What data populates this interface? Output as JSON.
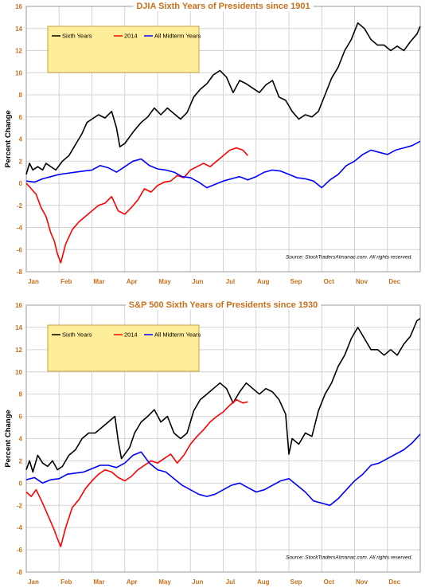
{
  "colors": {
    "sixth_years": "#000000",
    "y2014": "#ff0000",
    "midterm": "#0000ff",
    "axis_text": "#c8701c",
    "legend_bg": "#ffee99",
    "legend_border": "#c8a040"
  },
  "chart_data": [
    {
      "type": "line",
      "title": "DJIA Sixth Years of Presidents since 1901",
      "ylabel": "Percent Change",
      "xlabel": "",
      "ylim": [
        -8,
        16
      ],
      "yticks": [
        -8,
        -6,
        -4,
        -2,
        0,
        2,
        4,
        6,
        8,
        10,
        12,
        14,
        16
      ],
      "xlim": [
        0,
        12
      ],
      "xticks": [
        {
          "x": 0,
          "label": "Jan"
        },
        {
          "x": 1,
          "label": "Feb"
        },
        {
          "x": 2,
          "label": "Mar"
        },
        {
          "x": 3,
          "label": "Apr"
        },
        {
          "x": 4,
          "label": "May"
        },
        {
          "x": 5,
          "label": "Jun"
        },
        {
          "x": 6,
          "label": "Jul"
        },
        {
          "x": 7,
          "label": "Aug"
        },
        {
          "x": 8,
          "label": "Sep"
        },
        {
          "x": 9,
          "label": "Oct"
        },
        {
          "x": 10,
          "label": "Nov"
        },
        {
          "x": 11,
          "label": "Dec"
        }
      ],
      "grid": true,
      "legend": "top-left",
      "source": "Source: StockTradersAlmanac.com. All rights reserved.",
      "series": [
        {
          "name": "Sixth Years",
          "color": "#000000",
          "x": [
            0,
            0.1,
            0.2,
            0.35,
            0.5,
            0.6,
            0.75,
            0.9,
            1.1,
            1.3,
            1.5,
            1.7,
            1.85,
            2.0,
            2.2,
            2.4,
            2.6,
            2.75,
            2.85,
            3.0,
            3.15,
            3.3,
            3.5,
            3.7,
            3.9,
            4.1,
            4.3,
            4.5,
            4.7,
            4.9,
            5.1,
            5.3,
            5.5,
            5.7,
            5.9,
            6.1,
            6.3,
            6.5,
            6.7,
            6.9,
            7.1,
            7.3,
            7.5,
            7.7,
            7.9,
            8.1,
            8.3,
            8.5,
            8.7,
            8.9,
            9.1,
            9.3,
            9.5,
            9.7,
            9.9,
            10.1,
            10.3,
            10.5,
            10.7,
            10.9,
            11.1,
            11.3,
            11.5,
            11.7,
            11.9,
            12.0
          ],
          "y": [
            0.8,
            1.8,
            1.2,
            1.5,
            1.2,
            1.8,
            1.5,
            1.2,
            2.0,
            2.5,
            3.5,
            4.5,
            5.5,
            5.8,
            6.2,
            5.9,
            6.5,
            5.0,
            3.3,
            3.6,
            4.2,
            4.8,
            5.5,
            6.0,
            6.8,
            6.2,
            6.8,
            6.3,
            5.8,
            6.4,
            7.8,
            8.5,
            9.0,
            9.8,
            10.2,
            9.6,
            8.2,
            9.3,
            9.0,
            8.6,
            8.2,
            8.9,
            9.3,
            7.8,
            7.5,
            6.5,
            5.8,
            6.2,
            6.0,
            6.5,
            8.0,
            9.5,
            10.5,
            12.0,
            13.0,
            14.5,
            14.0,
            13.0,
            12.5,
            12.5,
            12.0,
            12.4,
            12.0,
            12.8,
            13.5,
            14.2
          ]
        },
        {
          "name": "2014",
          "color": "#ff0000",
          "x": [
            0,
            0.15,
            0.3,
            0.45,
            0.6,
            0.75,
            0.85,
            0.95,
            1.05,
            1.2,
            1.4,
            1.6,
            1.8,
            2.0,
            2.2,
            2.4,
            2.6,
            2.8,
            3.0,
            3.2,
            3.4,
            3.6,
            3.8,
            4.0,
            4.2,
            4.4,
            4.6,
            4.8,
            5.0,
            5.2,
            5.4,
            5.6,
            5.8,
            6.0,
            6.2,
            6.4,
            6.6,
            6.75
          ],
          "y": [
            0,
            -0.5,
            -1.0,
            -2.2,
            -3.0,
            -4.5,
            -5.2,
            -6.4,
            -7.2,
            -5.5,
            -4.2,
            -3.5,
            -3.0,
            -2.5,
            -2.0,
            -1.8,
            -1.2,
            -2.5,
            -2.8,
            -2.2,
            -1.5,
            -0.5,
            -0.8,
            -0.2,
            0.1,
            0.2,
            0.7,
            0.5,
            1.2,
            1.5,
            1.8,
            1.5,
            2.0,
            2.5,
            3.0,
            3.2,
            3.0,
            2.5
          ]
        },
        {
          "name": "All Midterm Years",
          "color": "#0000ff",
          "x": [
            0,
            0.25,
            0.5,
            0.75,
            1.0,
            1.25,
            1.5,
            1.75,
            2.0,
            2.25,
            2.5,
            2.75,
            3.0,
            3.25,
            3.5,
            3.75,
            4.0,
            4.25,
            4.5,
            4.75,
            5.0,
            5.25,
            5.5,
            5.75,
            6.0,
            6.25,
            6.5,
            6.75,
            7.0,
            7.25,
            7.5,
            7.75,
            8.0,
            8.25,
            8.5,
            8.75,
            9.0,
            9.25,
            9.5,
            9.75,
            10.0,
            10.25,
            10.5,
            10.75,
            11.0,
            11.25,
            11.5,
            11.75,
            12.0
          ],
          "y": [
            0.2,
            0.1,
            0.4,
            0.6,
            0.8,
            0.9,
            1.0,
            1.1,
            1.2,
            1.6,
            1.4,
            1.0,
            1.5,
            2.0,
            2.2,
            1.6,
            1.3,
            1.2,
            1.0,
            0.6,
            0.5,
            0.1,
            -0.4,
            -0.1,
            0.2,
            0.4,
            0.6,
            0.3,
            0.6,
            1.0,
            1.2,
            1.1,
            0.8,
            0.5,
            0.4,
            0.2,
            -0.4,
            0.3,
            0.8,
            1.6,
            2.0,
            2.6,
            3.0,
            2.8,
            2.6,
            3.0,
            3.2,
            3.4,
            3.8
          ]
        }
      ]
    },
    {
      "type": "line",
      "title": "S&P 500 Sixth Years of Presidents since 1930",
      "ylabel": "Percent Change",
      "xlabel": "",
      "ylim": [
        -8,
        16
      ],
      "yticks": [
        -8,
        -6,
        -4,
        -2,
        0,
        2,
        4,
        6,
        8,
        10,
        12,
        14,
        16
      ],
      "xlim": [
        0,
        12
      ],
      "xticks": [
        {
          "x": 0,
          "label": "Jan"
        },
        {
          "x": 1,
          "label": "Feb"
        },
        {
          "x": 2,
          "label": "Mar"
        },
        {
          "x": 3,
          "label": "Apr"
        },
        {
          "x": 4,
          "label": "May"
        },
        {
          "x": 5,
          "label": "Jun"
        },
        {
          "x": 6,
          "label": "Jul"
        },
        {
          "x": 7,
          "label": "Aug"
        },
        {
          "x": 8,
          "label": "Sep"
        },
        {
          "x": 9,
          "label": "Oct"
        },
        {
          "x": 10,
          "label": "Nov"
        },
        {
          "x": 11,
          "label": "Dec"
        }
      ],
      "grid": true,
      "legend": "top-left",
      "source": "Source: StockTradersAlmanac.com. All rights reserved.",
      "series": [
        {
          "name": "Sixth Years",
          "color": "#000000",
          "x": [
            0,
            0.1,
            0.2,
            0.35,
            0.5,
            0.65,
            0.8,
            0.95,
            1.1,
            1.3,
            1.5,
            1.7,
            1.9,
            2.1,
            2.3,
            2.5,
            2.7,
            2.8,
            2.9,
            3.0,
            3.15,
            3.3,
            3.5,
            3.7,
            3.9,
            4.1,
            4.3,
            4.5,
            4.7,
            4.9,
            5.1,
            5.3,
            5.5,
            5.7,
            5.9,
            6.1,
            6.3,
            6.5,
            6.7,
            6.9,
            7.1,
            7.3,
            7.5,
            7.7,
            7.9,
            8.0,
            8.1,
            8.3,
            8.5,
            8.7,
            8.9,
            9.1,
            9.3,
            9.5,
            9.7,
            9.9,
            10.1,
            10.3,
            10.5,
            10.7,
            10.9,
            11.1,
            11.3,
            11.5,
            11.7,
            11.9,
            12.0
          ],
          "y": [
            1.2,
            2.0,
            1.0,
            2.5,
            1.8,
            1.5,
            2.0,
            1.2,
            1.5,
            2.5,
            3.0,
            4.0,
            4.5,
            4.5,
            5.0,
            5.5,
            6.0,
            3.8,
            2.2,
            2.6,
            3.2,
            4.5,
            5.5,
            6.0,
            6.6,
            5.5,
            6.0,
            4.5,
            4.0,
            4.5,
            6.5,
            7.5,
            8.0,
            8.5,
            9.0,
            8.5,
            7.2,
            8.2,
            9.0,
            8.5,
            8.0,
            8.5,
            8.2,
            7.5,
            6.2,
            2.6,
            4.0,
            3.5,
            4.5,
            4.2,
            6.5,
            8.0,
            9.0,
            10.5,
            11.5,
            13.0,
            14.0,
            13.0,
            12.0,
            12.0,
            11.5,
            12.0,
            11.5,
            12.5,
            13.2,
            14.6,
            14.8
          ]
        },
        {
          "name": "2014",
          "color": "#ff0000",
          "x": [
            0,
            0.15,
            0.3,
            0.45,
            0.6,
            0.75,
            0.85,
            0.95,
            1.05,
            1.2,
            1.4,
            1.6,
            1.8,
            2.0,
            2.2,
            2.4,
            2.6,
            2.8,
            3.0,
            3.2,
            3.4,
            3.6,
            3.8,
            4.0,
            4.2,
            4.4,
            4.6,
            4.8,
            5.0,
            5.2,
            5.4,
            5.6,
            5.8,
            6.0,
            6.2,
            6.4,
            6.6,
            6.75
          ],
          "y": [
            -0.8,
            -1.2,
            -0.6,
            -1.5,
            -2.5,
            -3.5,
            -4.2,
            -5.0,
            -5.7,
            -4.0,
            -2.2,
            -1.5,
            -0.5,
            0.2,
            0.8,
            1.2,
            1.0,
            0.5,
            0.2,
            0.6,
            1.2,
            1.6,
            2.0,
            1.8,
            2.2,
            2.6,
            1.8,
            2.5,
            3.5,
            4.2,
            4.8,
            5.5,
            6.0,
            6.4,
            7.0,
            7.5,
            7.2,
            7.3
          ]
        },
        {
          "name": "All Midterm Years",
          "color": "#0000ff",
          "x": [
            0,
            0.25,
            0.5,
            0.75,
            1.0,
            1.25,
            1.5,
            1.75,
            2.0,
            2.25,
            2.5,
            2.75,
            3.0,
            3.25,
            3.5,
            3.75,
            4.0,
            4.25,
            4.5,
            4.75,
            5.0,
            5.25,
            5.5,
            5.75,
            6.0,
            6.25,
            6.5,
            6.75,
            7.0,
            7.25,
            7.5,
            7.75,
            8.0,
            8.25,
            8.5,
            8.75,
            9.0,
            9.25,
            9.5,
            9.75,
            10.0,
            10.25,
            10.5,
            10.75,
            11.0,
            11.25,
            11.5,
            11.75,
            12.0
          ],
          "y": [
            0.3,
            0.5,
            0.0,
            0.3,
            0.4,
            0.8,
            0.9,
            1.0,
            1.3,
            1.6,
            1.6,
            1.4,
            1.8,
            2.5,
            2.8,
            1.8,
            1.2,
            1.0,
            0.4,
            -0.2,
            -0.6,
            -1.0,
            -1.2,
            -1.0,
            -0.6,
            -0.2,
            0.0,
            -0.4,
            -0.8,
            -0.6,
            -0.2,
            0.2,
            0.4,
            -0.2,
            -0.8,
            -1.6,
            -1.8,
            -2.0,
            -1.4,
            -0.6,
            0.2,
            0.8,
            1.6,
            1.8,
            2.2,
            2.6,
            3.0,
            3.6,
            4.4
          ]
        }
      ]
    }
  ]
}
